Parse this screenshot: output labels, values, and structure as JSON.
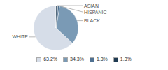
{
  "chart_data": {
    "type": "pie",
    "categories": [
      "WHITE",
      "BLACK",
      "HISPANIC",
      "ASIAN"
    ],
    "values": [
      63.2,
      34.3,
      1.3,
      1.3
    ],
    "value_labels": [
      "63.2%",
      "34.3%",
      "1.3%",
      "1.3%"
    ],
    "colors": [
      "#d6dde8",
      "#7a9ab5",
      "#4f7191",
      "#1e3a52"
    ],
    "legend": "bottom"
  }
}
